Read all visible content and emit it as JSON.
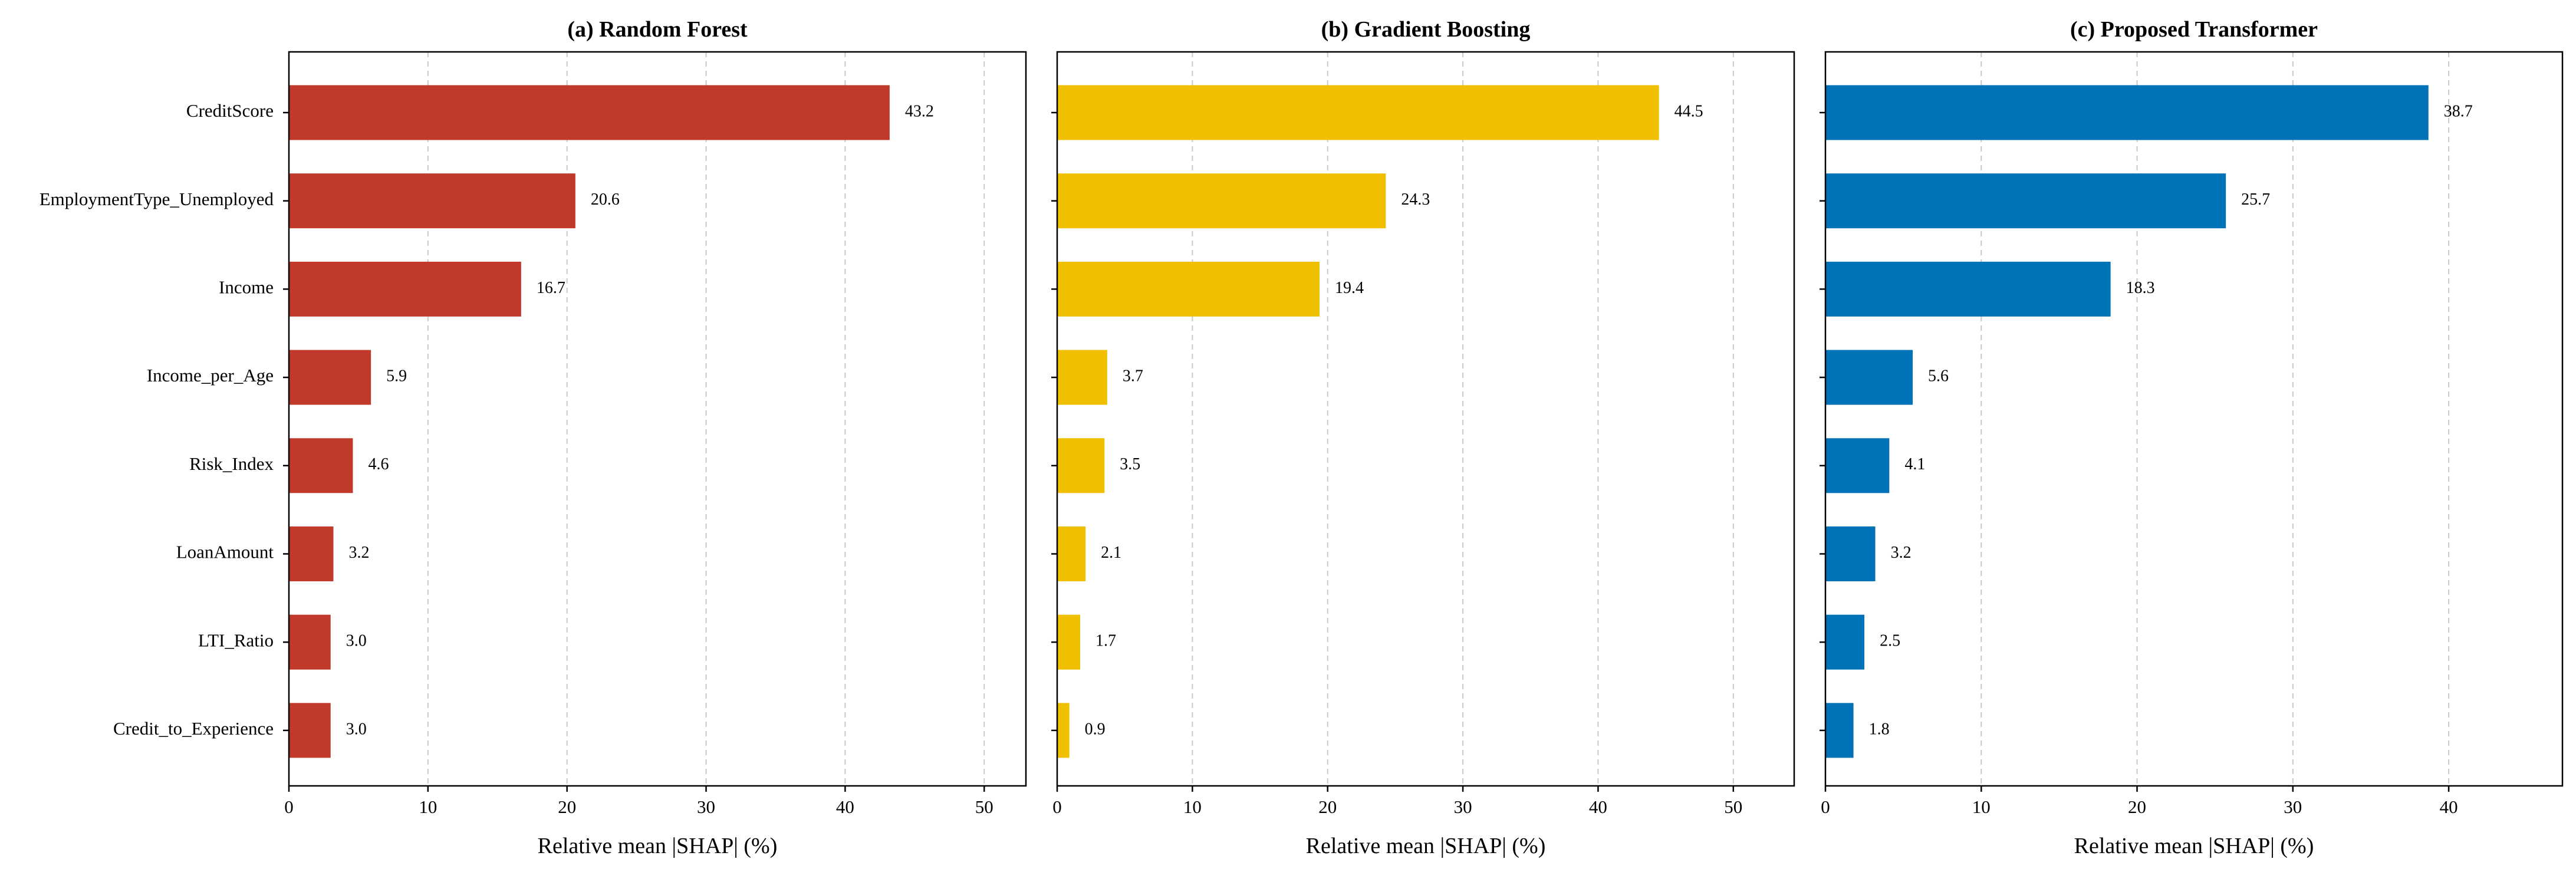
{
  "chart_data": [
    {
      "type": "bar",
      "orientation": "horizontal",
      "title": "(a) Random Forest",
      "xlabel": "Relative mean |SHAP| (%)",
      "ylabel": "",
      "xlim": [
        0,
        53
      ],
      "xticks": [
        0,
        10,
        20,
        30,
        40,
        50
      ],
      "grid": "x, dashed",
      "color": "#C0392B",
      "categories": [
        "CreditScore",
        "EmploymentType_Unemployed",
        "Income",
        "Income_per_Age",
        "Risk_Index",
        "LoanAmount",
        "LTI_Ratio",
        "Credit_to_Experience"
      ],
      "values": [
        43.2,
        20.6,
        16.7,
        5.9,
        4.6,
        3.2,
        3.0,
        3.0
      ],
      "value_labels": [
        "43.2",
        "20.6",
        "16.7",
        "5.9",
        "4.6",
        "3.2",
        "3.0",
        "3.0"
      ]
    },
    {
      "type": "bar",
      "orientation": "horizontal",
      "title": "(b) Gradient Boosting",
      "xlabel": "Relative mean |SHAP| (%)",
      "ylabel": "",
      "xlim": [
        0,
        54.5
      ],
      "xticks": [
        0,
        10,
        20,
        30,
        40,
        50
      ],
      "grid": "x, dashed",
      "color": "#F0C000",
      "categories": [
        "CreditScore",
        "EmploymentType_Unemployed",
        "Income",
        "Income_per_Age",
        "Risk_Index",
        "LoanAmount",
        "LTI_Ratio",
        "Credit_to_Experience"
      ],
      "values": [
        44.5,
        24.3,
        19.4,
        3.7,
        3.5,
        2.1,
        1.7,
        0.9
      ],
      "value_labels": [
        "44.5",
        "24.3",
        "19.4",
        "3.7",
        "3.5",
        "2.1",
        "1.7",
        "0.9"
      ]
    },
    {
      "type": "bar",
      "orientation": "horizontal",
      "title": "(c) Proposed Transformer",
      "xlabel": "Relative mean |SHAP| (%)",
      "ylabel": "",
      "xlim": [
        0,
        47.3
      ],
      "xticks": [
        0,
        10,
        20,
        30,
        40
      ],
      "grid": "x, dashed",
      "color": "#0072B8",
      "categories": [
        "CreditScore",
        "EmploymentType_Unemployed",
        "Income",
        "Income_per_Age",
        "Risk_Index",
        "LoanAmount",
        "LTI_Ratio",
        "Credit_to_Experience"
      ],
      "values": [
        38.7,
        25.7,
        18.3,
        5.6,
        4.1,
        3.2,
        2.5,
        1.8
      ],
      "value_labels": [
        "38.7",
        "25.7",
        "18.3",
        "5.6",
        "4.1",
        "3.2",
        "2.5",
        "1.8"
      ]
    }
  ]
}
